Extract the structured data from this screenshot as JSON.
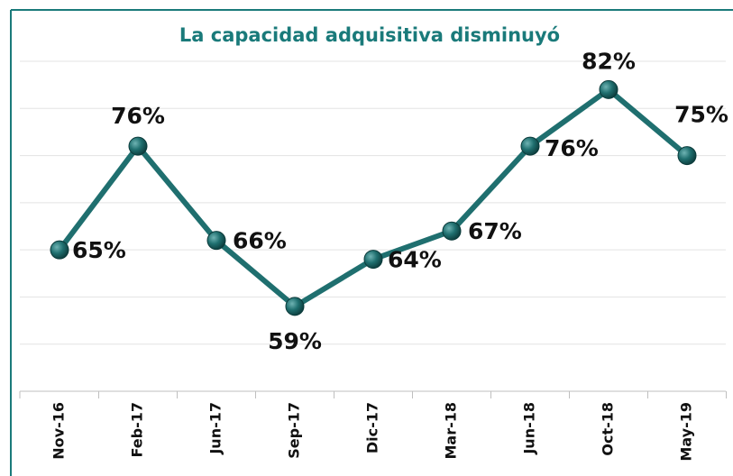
{
  "chart_data": {
    "type": "line",
    "title": "La capacidad adquisitiva disminuyó",
    "categories": [
      "Nov-16",
      "Feb-17",
      "Jun-17",
      "Sep-17",
      "Dic-17",
      "Mar-18",
      "Jun-18",
      "Oct-18",
      "May-19"
    ],
    "values": [
      65,
      76,
      66,
      59,
      64,
      67,
      76,
      82,
      75
    ],
    "value_labels": [
      "65%",
      "76%",
      "66%",
      "59%",
      "64%",
      "67%",
      "76%",
      "82%",
      "75%"
    ],
    "color": "#1f6f6f",
    "ylim": [
      50,
      85
    ],
    "yticks": [
      55,
      60,
      65,
      70,
      75,
      80,
      85
    ],
    "grid": true
  }
}
